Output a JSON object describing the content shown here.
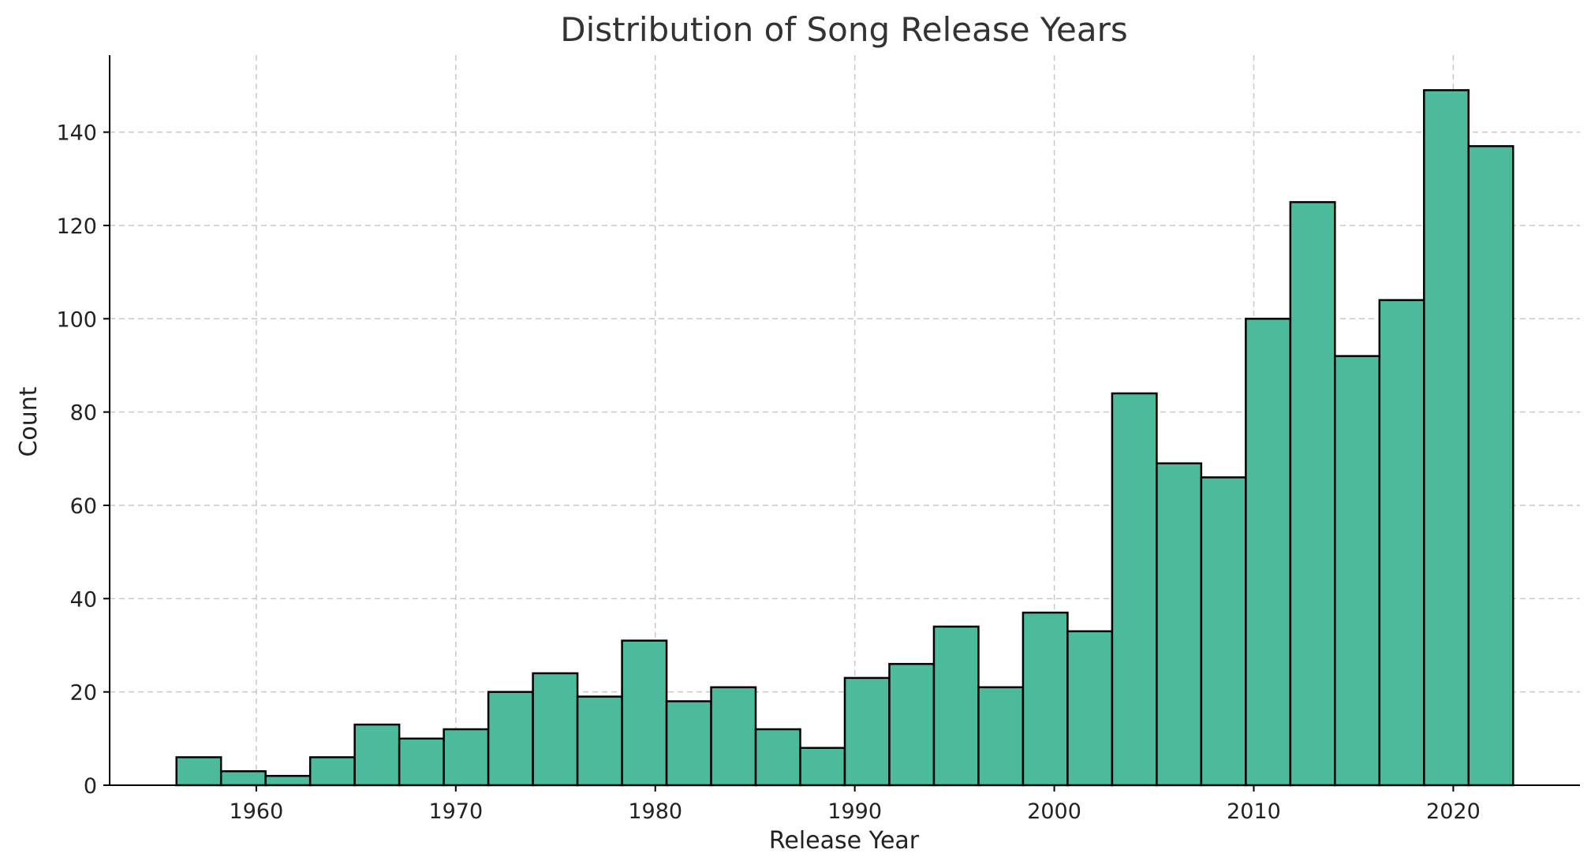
{
  "chart_data": {
    "type": "bar",
    "title": "Distribution of Song Release Years",
    "xlabel": "Release Year",
    "ylabel": "Count",
    "bin_start": 1956,
    "bin_end": 2023,
    "values": [
      6,
      3,
      2,
      6,
      13,
      10,
      12,
      20,
      24,
      19,
      31,
      18,
      21,
      12,
      8,
      23,
      26,
      34,
      21,
      37,
      33,
      84,
      69,
      66,
      100,
      125,
      92,
      104,
      149,
      137
    ],
    "x_ticks": [
      "1960",
      "1970",
      "1980",
      "1990",
      "2000",
      "2010",
      "2020"
    ],
    "y_ticks": [
      "0",
      "20",
      "40",
      "60",
      "80",
      "100",
      "120",
      "140"
    ],
    "xlim": [
      1952.65,
      2026.35
    ],
    "ylim": [
      0,
      156.5
    ],
    "bar_color": "#4bbb9c",
    "edge_color": "#000000",
    "grid": true
  }
}
